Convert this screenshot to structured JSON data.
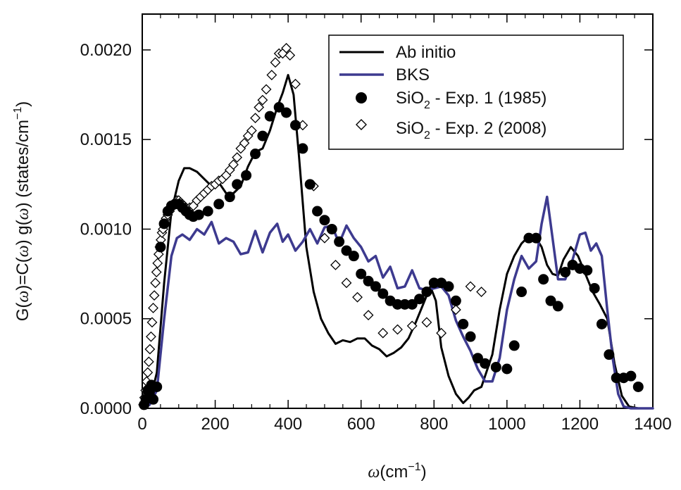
{
  "chart_data": {
    "type": "line",
    "title": "",
    "xlabel_main": "ω",
    "xlabel_unit": "(cm",
    "xlabel_sup": "−1",
    "xlabel_close": ")",
    "ylabel_parts": {
      "a": "G(",
      "w1": "ω",
      "b": ")=C(",
      "w2": "ω",
      "c": ") g(",
      "w3": "ω",
      "d": ") (states/cm",
      "sup": "−1",
      "e": ")"
    },
    "xlim": [
      0,
      1400
    ],
    "ylim": [
      0,
      0.0022
    ],
    "xticks": [
      0,
      200,
      400,
      600,
      800,
      1000,
      1200,
      1400
    ],
    "xtick_labels": [
      "0",
      "200",
      "400",
      "600",
      "800",
      "1000",
      "1200",
      "1400"
    ],
    "yticks": [
      0,
      0.0005,
      0.001,
      0.0015,
      0.002
    ],
    "ytick_labels": [
      "0.0000",
      "0.0005",
      "0.0010",
      "0.0015",
      "0.0020"
    ],
    "grid": false,
    "legend_position": "top-right",
    "series": [
      {
        "name": "Ab initio",
        "style": "line",
        "color": "#000000",
        "x": [
          0,
          20,
          40,
          60,
          80,
          100,
          115,
          130,
          150,
          170,
          190,
          210,
          230,
          250,
          270,
          290,
          310,
          330,
          350,
          370,
          385,
          400,
          415,
          430,
          450,
          470,
          490,
          510,
          530,
          550,
          570,
          590,
          610,
          630,
          650,
          670,
          690,
          710,
          730,
          750,
          770,
          790,
          805,
          820,
          840,
          860,
          880,
          895,
          910,
          930,
          960,
          980,
          1000,
          1020,
          1040,
          1060,
          1080,
          1095,
          1110,
          1125,
          1140,
          1155,
          1175,
          1195,
          1215,
          1235,
          1255,
          1275,
          1295,
          1315,
          1335,
          1360,
          1400
        ],
        "y": [
          0,
          3e-05,
          0.0002,
          0.0007,
          0.0011,
          0.00127,
          0.00134,
          0.00134,
          0.00132,
          0.00128,
          0.00124,
          0.00126,
          0.0012,
          0.0012,
          0.00124,
          0.00135,
          0.00143,
          0.00145,
          0.00155,
          0.00168,
          0.00176,
          0.00186,
          0.00175,
          0.0014,
          0.0009,
          0.00065,
          0.0005,
          0.00042,
          0.00036,
          0.00038,
          0.00037,
          0.00039,
          0.00039,
          0.00035,
          0.00033,
          0.00029,
          0.00031,
          0.00034,
          0.00039,
          0.00048,
          0.00058,
          0.00068,
          0.0006,
          0.00034,
          0.00018,
          8e-05,
          3e-05,
          6e-05,
          0.0001,
          0.00012,
          0.0003,
          0.00055,
          0.00075,
          0.00085,
          0.00092,
          0.00096,
          0.00095,
          0.0009,
          0.0008,
          0.00075,
          0.00074,
          0.00083,
          0.0009,
          0.00085,
          0.00075,
          0.00065,
          0.00058,
          0.0005,
          0.00025,
          7e-05,
          1e-05,
          0,
          0
        ]
      },
      {
        "name": "BKS",
        "style": "line",
        "color": "#3d3a8f",
        "x": [
          0,
          20,
          40,
          60,
          80,
          95,
          110,
          130,
          150,
          170,
          190,
          210,
          230,
          250,
          270,
          290,
          310,
          330,
          350,
          370,
          385,
          400,
          420,
          440,
          460,
          480,
          500,
          520,
          540,
          560,
          580,
          600,
          620,
          640,
          660,
          680,
          700,
          720,
          740,
          760,
          780,
          800,
          820,
          840,
          860,
          880,
          900,
          920,
          940,
          960,
          980,
          1000,
          1020,
          1040,
          1060,
          1080,
          1095,
          1110,
          1125,
          1140,
          1160,
          1180,
          1200,
          1215,
          1230,
          1245,
          1260,
          1275,
          1290,
          1305,
          1320,
          1340,
          1400
        ],
        "y": [
          0,
          2e-05,
          0.0001,
          0.0005,
          0.00085,
          0.00095,
          0.00097,
          0.00094,
          0.001,
          0.00097,
          0.00104,
          0.00092,
          0.00095,
          0.00093,
          0.00086,
          0.00087,
          0.00099,
          0.00087,
          0.00098,
          0.00103,
          0.00093,
          0.00097,
          0.00088,
          0.00093,
          0.001,
          0.00092,
          0.00101,
          0.00102,
          0.00092,
          0.00102,
          0.00095,
          0.0009,
          0.00082,
          0.00085,
          0.00073,
          0.00079,
          0.00067,
          0.00068,
          0.00077,
          0.00067,
          0.00066,
          0.00067,
          0.00068,
          0.00063,
          0.00049,
          0.0004,
          0.00032,
          0.00022,
          0.00015,
          0.00015,
          0.00028,
          0.00055,
          0.00072,
          0.00085,
          0.00078,
          0.00082,
          0.00103,
          0.00118,
          0.00095,
          0.00072,
          0.00072,
          0.00083,
          0.00097,
          0.00098,
          0.00088,
          0.00092,
          0.00085,
          0.00055,
          0.00028,
          8e-05,
          1e-05,
          0,
          0
        ]
      },
      {
        "name_main": "SiO",
        "name_sub": "2",
        "name_rest": " - Exp. 1 (1985)",
        "style": "filled-circle",
        "color": "#000000",
        "x": [
          5,
          10,
          15,
          20,
          25,
          30,
          40,
          50,
          60,
          70,
          80,
          90,
          100,
          110,
          120,
          130,
          140,
          155,
          180,
          210,
          240,
          260,
          285,
          310,
          330,
          350,
          375,
          395,
          420,
          440,
          460,
          480,
          500,
          520,
          540,
          560,
          580,
          600,
          620,
          640,
          660,
          680,
          700,
          720,
          740,
          760,
          780,
          800,
          820,
          840,
          860,
          880,
          900,
          920,
          940,
          970,
          1000,
          1020,
          1040,
          1060,
          1080,
          1100,
          1120,
          1140,
          1160,
          1180,
          1200,
          1220,
          1240,
          1260,
          1280,
          1300,
          1320,
          1340,
          1360
        ],
        "y": [
          2e-05,
          5e-05,
          0.0001,
          9e-05,
          0.00013,
          5e-05,
          0.00012,
          0.0009,
          0.00103,
          0.0011,
          0.00113,
          0.00114,
          0.00114,
          0.00112,
          0.0011,
          0.00108,
          0.00107,
          0.00108,
          0.0011,
          0.00114,
          0.00118,
          0.00125,
          0.0013,
          0.00142,
          0.00152,
          0.00163,
          0.00168,
          0.00165,
          0.00158,
          0.00145,
          0.00125,
          0.0011,
          0.00105,
          0.001,
          0.00093,
          0.00088,
          0.00085,
          0.00075,
          0.00071,
          0.00068,
          0.00064,
          0.0006,
          0.00058,
          0.00058,
          0.00058,
          0.00061,
          0.00065,
          0.0007,
          0.0007,
          0.00068,
          0.0006,
          0.00047,
          0.0004,
          0.00028,
          0.00025,
          0.00023,
          0.00022,
          0.00035,
          0.00065,
          0.00095,
          0.00095,
          0.00072,
          0.0006,
          0.00057,
          0.00076,
          0.0008,
          0.00078,
          0.00077,
          0.00067,
          0.00047,
          0.0003,
          0.00017,
          0.00017,
          0.00018,
          0.00012
        ]
      },
      {
        "name_main": "SiO",
        "name_sub": "2",
        "name_rest": " - Exp. 2 (2008)",
        "style": "open-diamond",
        "color": "#000000",
        "x": [
          3,
          6,
          9,
          12,
          15,
          18,
          21,
          24,
          27,
          30,
          33,
          36,
          39,
          42,
          45,
          48,
          51,
          54,
          57,
          60,
          65,
          70,
          75,
          80,
          85,
          90,
          95,
          100,
          105,
          110,
          115,
          120,
          125,
          130,
          140,
          150,
          160,
          170,
          180,
          190,
          200,
          210,
          220,
          230,
          240,
          250,
          260,
          270,
          280,
          290,
          300,
          310,
          320,
          330,
          340,
          355,
          365,
          375,
          385,
          395,
          405,
          420,
          440,
          470,
          500,
          530,
          560,
          590,
          620,
          660,
          700,
          740,
          780,
          820,
          860,
          900,
          930
        ],
        "y": [
          2e-05,
          6e-05,
          0.0001,
          0.00015,
          0.0002,
          0.00026,
          0.00033,
          0.0004,
          0.00048,
          0.00056,
          0.00063,
          0.0007,
          0.00076,
          0.00081,
          0.00086,
          0.0009,
          0.00094,
          0.00098,
          0.001,
          0.00103,
          0.00106,
          0.00108,
          0.0011,
          0.00112,
          0.00114,
          0.00115,
          0.00116,
          0.00116,
          0.00115,
          0.00114,
          0.00113,
          0.00112,
          0.00111,
          0.00112,
          0.00113,
          0.00116,
          0.00118,
          0.0012,
          0.00122,
          0.00124,
          0.00125,
          0.00127,
          0.00128,
          0.0013,
          0.00133,
          0.00136,
          0.0014,
          0.00145,
          0.00148,
          0.00152,
          0.00155,
          0.00162,
          0.00168,
          0.00172,
          0.00178,
          0.00186,
          0.00193,
          0.00198,
          0.00198,
          0.00201,
          0.00197,
          0.00181,
          0.00158,
          0.00124,
          0.00095,
          0.0008,
          0.0007,
          0.00062,
          0.00052,
          0.00042,
          0.00044,
          0.00046,
          0.00048,
          0.00042,
          0.00055,
          0.00068,
          0.00065
        ]
      }
    ]
  }
}
